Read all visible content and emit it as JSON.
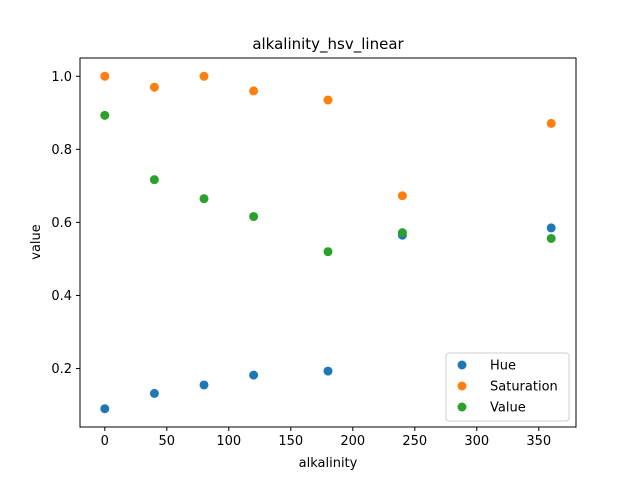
{
  "chart_data": {
    "type": "scatter",
    "title": "alkalinity_hsv_linear",
    "xlabel": "alkalinity",
    "ylabel": "value",
    "xlim": [
      -20,
      380
    ],
    "ylim": [
      0.04,
      1.05
    ],
    "xticks": [
      0,
      50,
      100,
      150,
      200,
      250,
      300,
      350
    ],
    "yticks": [
      0.2,
      0.4,
      0.6,
      0.8,
      1.0
    ],
    "ytick_labels": [
      "0.2",
      "0.4",
      "0.6",
      "0.8",
      "1.0"
    ],
    "legend_position": "lower-right",
    "grid": false,
    "series": [
      {
        "name": "Hue",
        "color": "#1f77b4",
        "x": [
          0,
          40,
          80,
          120,
          180,
          240,
          360
        ],
        "y": [
          0.09,
          0.132,
          0.155,
          0.182,
          0.193,
          0.565,
          0.585
        ]
      },
      {
        "name": "Saturation",
        "color": "#ff7f0e",
        "x": [
          0,
          40,
          80,
          120,
          180,
          240,
          360
        ],
        "y": [
          1.0,
          0.97,
          1.0,
          0.96,
          0.935,
          0.673,
          0.871
        ]
      },
      {
        "name": "Value",
        "color": "#2ca02c",
        "x": [
          0,
          40,
          80,
          120,
          180,
          240,
          360
        ],
        "y": [
          0.893,
          0.717,
          0.665,
          0.616,
          0.52,
          0.572,
          0.556
        ]
      }
    ]
  }
}
